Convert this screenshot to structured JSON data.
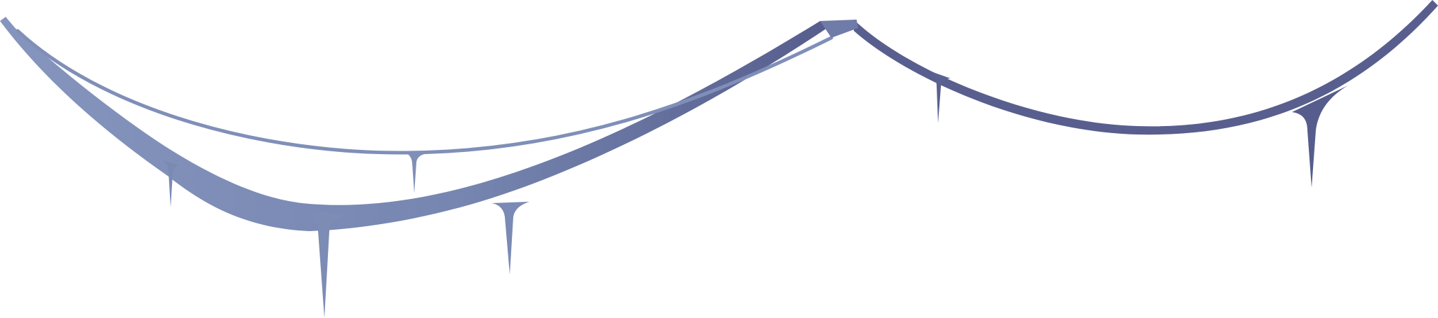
{
  "artwork": {
    "subject": "decorative-garland-swags-with-pendant-drops",
    "colors": {
      "background": "#ffffff",
      "stroke_light": "#7f8fb8",
      "stroke_dark": "#5a6190",
      "fill_light": "#7d8cb5",
      "fill_dark": "#585f8e"
    }
  }
}
